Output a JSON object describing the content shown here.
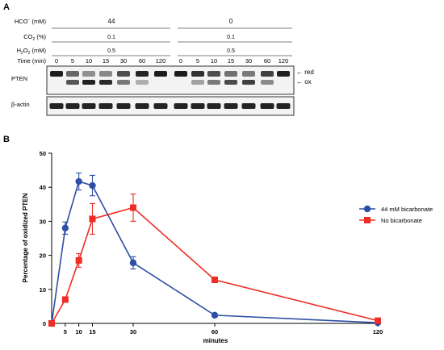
{
  "panels": {
    "a_label": "A",
    "b_label": "B"
  },
  "blot": {
    "conditions": [
      {
        "label": "HCO3",
        "superscript": "−",
        "unit": " (mM)",
        "values": [
          "44",
          "0"
        ]
      },
      {
        "label": "CO2",
        "subscript": "2",
        "base": "CO",
        "unit": " (%)",
        "values": [
          "0.1",
          "0.1"
        ]
      },
      {
        "label": "H2O2",
        "unit": " (mM)",
        "values": [
          "0.5",
          "0.5"
        ]
      }
    ],
    "time_label": "Time (min)",
    "times": [
      "0",
      "5",
      "10",
      "15",
      "30",
      "60",
      "120",
      "0",
      "5",
      "10",
      "15",
      "30",
      "60",
      "120"
    ],
    "rows": [
      "PTEN",
      "β-actin"
    ],
    "band_labels": [
      "red",
      "ox"
    ],
    "pten_ox_fraction": [
      0,
      0.28,
      0.42,
      0.4,
      0.18,
      0.03,
      0,
      0,
      0.07,
      0.18,
      0.31,
      0.34,
      0.13,
      0.01
    ]
  },
  "chart_data": {
    "type": "line",
    "ylabel": "Percentage of oxidized PTEN",
    "xlabel": "minutes",
    "x_ticks": [
      5,
      10,
      15,
      30,
      60,
      120
    ],
    "y_ticks": [
      0,
      10,
      20,
      30,
      40,
      50
    ],
    "ylim": [
      0,
      50
    ],
    "xlim": [
      0,
      120
    ],
    "legend_position": "right",
    "series": [
      {
        "name": "44 mM bicarbonate",
        "color": "#2e4fa3",
        "marker": "circle",
        "x": [
          0,
          5,
          10,
          15,
          30,
          60,
          120
        ],
        "y": [
          0,
          28,
          41.7,
          40.5,
          17.8,
          2.4,
          0.2
        ],
        "err": [
          0,
          1.8,
          2.5,
          3.0,
          1.8,
          0.3,
          0
        ]
      },
      {
        "name": "No bicarbonate",
        "color": "#ee2d24",
        "marker": "square",
        "x": [
          0,
          5,
          10,
          15,
          30,
          60,
          120
        ],
        "y": [
          0,
          7,
          18.5,
          30.7,
          34.0,
          12.8,
          0.8
        ],
        "err": [
          0,
          0,
          2.0,
          4.5,
          4.0,
          0,
          0
        ]
      }
    ]
  }
}
